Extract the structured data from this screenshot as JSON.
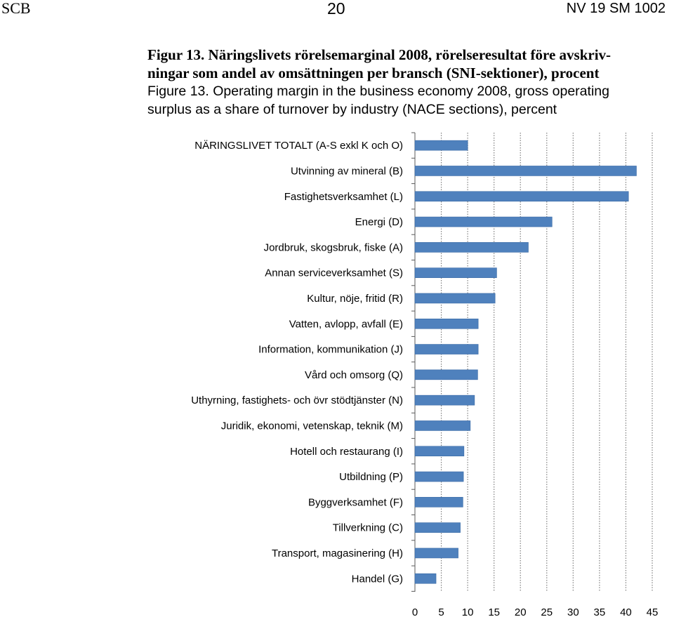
{
  "header": {
    "left": "SCB",
    "page_number": "20",
    "right": "NV 19 SM 1002"
  },
  "caption": {
    "sv_line1": "Figur 13. Näringslivets rörelsemarginal 2008, rörelseresultat före avskriv-",
    "sv_line2": "ningar som andel av omsättningen per bransch (SNI-sektioner), procent",
    "en_line1": "Figure 13. Operating margin in the business economy 2008, gross operating",
    "en_line2": "surplus as a share of turnover by industry (NACE sections), percent"
  },
  "colors": {
    "bar": "#4f81bd",
    "bar_stroke": "#3a6aa6",
    "grid": "#7f7f7f",
    "axis": "#595959"
  },
  "chart_data": {
    "type": "bar",
    "orientation": "horizontal",
    "categories": [
      "NÄRINGSLIVET TOTALT (A-S exkl K och O)",
      "Utvinning av mineral (B)",
      "Fastighetsverksamhet (L)",
      "Energi (D)",
      "Jordbruk, skogsbruk, fiske (A)",
      "Annan serviceverksamhet (S)",
      "Kultur, nöje, fritid (R)",
      "Vatten, avlopp, avfall (E)",
      "Information, kommunikation (J)",
      "Vård och omsorg (Q)",
      "Uthyrning, fastighets- och övr stödtjänster (N)",
      "Juridik, ekonomi, vetenskap, teknik (M)",
      "Hotell och restaurang (I)",
      "Utbildning (P)",
      "Byggverksamhet (F)",
      "Tillverkning (C)",
      "Transport, magasinering (H)",
      "Handel (G)"
    ],
    "values": [
      10,
      42,
      40.5,
      26,
      21.5,
      15.5,
      15.2,
      12,
      12,
      11.9,
      11.3,
      10.5,
      9.3,
      9.2,
      9.1,
      8.6,
      8.2,
      4
    ],
    "xlim": [
      0,
      45
    ],
    "xticks": [
      "0",
      "5",
      "10",
      "15",
      "20",
      "25",
      "30",
      "35",
      "40",
      "45"
    ],
    "grid": true,
    "legend": "none",
    "title": "",
    "xlabel": "",
    "ylabel": ""
  }
}
